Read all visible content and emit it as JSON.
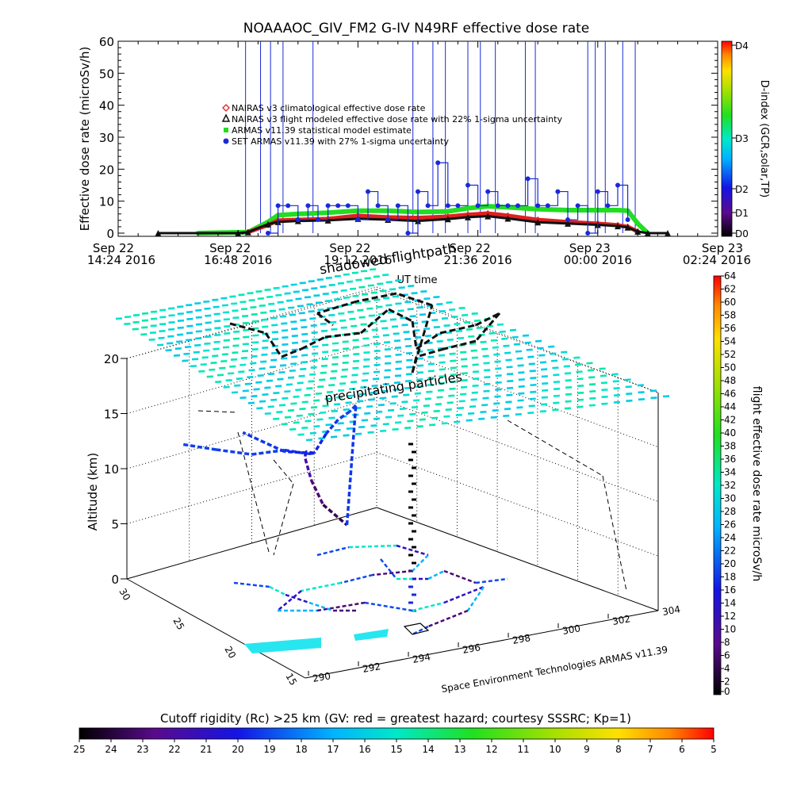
{
  "title": "NOAAAOC_GIV_FM2 G-IV    N49RF  effective dose rate",
  "colors": {
    "nairas_climatological": "#e02020",
    "nairas_flight": "#111111",
    "armas_statistical": "#22dd22",
    "set_armas": "#1a2ad8",
    "spike_lines": "#1a2ad8"
  },
  "chart_data": [
    {
      "id": "time_series",
      "type": "line",
      "ylabel": "Effective dose rate (microSv/h)",
      "xlabel": "UT time",
      "ylim": [
        0,
        60
      ],
      "yticks": [
        0,
        10,
        20,
        30,
        40,
        50,
        60
      ],
      "xticks": [
        {
          "x_hours": 0.0,
          "line1": "Sep 22",
          "line2": "14:24 2016"
        },
        {
          "x_hours": 2.4,
          "line1": "Sep 22",
          "line2": "16:48 2016"
        },
        {
          "x_hours": 4.8,
          "line1": "Sep 22",
          "line2": "19:12 2016"
        },
        {
          "x_hours": 7.2,
          "line1": "Sep 22",
          "line2": "21:36 2016"
        },
        {
          "x_hours": 9.6,
          "line1": "Sep 23",
          "line2": "00:00 2016"
        },
        {
          "x_hours": 12.0,
          "line1": "Sep 23",
          "line2": "02:24 2016"
        }
      ],
      "xlim_hours": [
        0,
        12
      ],
      "legend": [
        {
          "label": "NAIRAS v3 climatological effective dose rate",
          "marker": "diamond",
          "color_key": "nairas_climatological"
        },
        {
          "label": "NAIRAS v3 flight modeled effective dose rate with 22% 1-sigma uncertainty",
          "marker": "triangle",
          "color_key": "nairas_flight"
        },
        {
          "label": "ARMAS v11.39 statistical model estimate",
          "marker": "square",
          "color_key": "armas_statistical"
        },
        {
          "label": "SET ARMAS v11.39 with 27% 1-sigma uncertainty",
          "marker": "circle",
          "color_key": "set_armas"
        }
      ],
      "series": [
        {
          "name": "ARMAS v11.39 statistical model estimate",
          "color_key": "armas_statistical",
          "x": [
            1.6,
            2.6,
            3.0,
            3.2,
            3.6,
            4.2,
            4.8,
            5.4,
            6.0,
            6.6,
            7.0,
            7.4,
            7.8,
            8.4,
            9.0,
            9.6,
            10.0,
            10.2,
            10.4,
            10.6
          ],
          "y": [
            0,
            0.3,
            3.5,
            5.6,
            6.0,
            6.4,
            7.0,
            7.0,
            6.6,
            6.8,
            7.8,
            8.4,
            8.1,
            7.5,
            7.2,
            7.2,
            7.2,
            7.0,
            3.0,
            0
          ]
        },
        {
          "name": "NAIRAS v3 climatological effective dose rate",
          "color_key": "nairas_climatological",
          "x": [
            2.6,
            3.0,
            3.2,
            3.6,
            4.2,
            4.8,
            5.4,
            6.0,
            6.6,
            7.0,
            7.4,
            7.8,
            8.4,
            9.0,
            9.6,
            10.0,
            10.2,
            10.4
          ],
          "y": [
            0.3,
            2.5,
            4.0,
            4.2,
            4.5,
            5.5,
            5.0,
            4.8,
            5.2,
            5.8,
            6.2,
            5.5,
            4.2,
            3.5,
            3.0,
            2.5,
            2.0,
            0.5
          ]
        },
        {
          "name": "NAIRAS v3 flight modeled effective dose rate with 22% 1-sigma uncertainty",
          "color_key": "nairas_flight",
          "x": [
            0.8,
            2.4,
            2.6,
            3.0,
            3.2,
            3.6,
            4.2,
            4.8,
            5.4,
            6.0,
            6.6,
            7.0,
            7.4,
            7.8,
            8.4,
            9.0,
            9.6,
            10.0,
            10.2,
            10.4,
            10.6,
            11.0
          ],
          "y": [
            0,
            0,
            0.3,
            2.8,
            3.5,
            3.8,
            4.0,
            4.5,
            4.2,
            3.8,
            4.4,
            5.0,
            5.3,
            4.6,
            3.4,
            3.0,
            2.6,
            2.2,
            1.8,
            0.5,
            0,
            0
          ]
        },
        {
          "name": "SET ARMAS v11.39 with 27% 1-sigma uncertainty",
          "color_key": "set_armas",
          "x": [
            3.0,
            3.2,
            3.4,
            3.6,
            3.8,
            4.0,
            4.2,
            4.4,
            4.6,
            4.8,
            5.0,
            5.2,
            5.4,
            5.6,
            5.8,
            6.0,
            6.2,
            6.4,
            6.6,
            6.8,
            7.0,
            7.2,
            7.4,
            7.6,
            7.8,
            8.0,
            8.2,
            8.4,
            8.6,
            8.8,
            9.0,
            9.2,
            9.4,
            9.6,
            9.8,
            10.0,
            10.2
          ],
          "y": [
            0,
            8.6,
            8.6,
            4.2,
            8.6,
            4.2,
            8.6,
            8.6,
            8.6,
            4.2,
            13.0,
            8.6,
            4.2,
            8.6,
            0,
            13.0,
            8.6,
            22.0,
            8.6,
            8.6,
            15.0,
            8.6,
            13.0,
            8.6,
            8.6,
            8.6,
            17.0,
            8.6,
            8.6,
            13.0,
            4.2,
            8.6,
            0,
            13.0,
            8.6,
            15.0,
            4.2
          ]
        }
      ],
      "spike_times_hours": [
        2.55,
        2.85,
        3.05,
        3.3,
        3.9,
        5.9,
        6.3,
        6.55,
        7.0,
        7.25,
        7.55,
        8.15,
        8.35,
        9.4,
        9.55,
        9.75,
        10.1,
        10.35
      ]
    },
    {
      "id": "dindex_colorbar",
      "type": "heatmap",
      "ylabel": "D-index (GCR,solar,TP)",
      "tick_labels": [
        "D0",
        "D1",
        "D2",
        "D3",
        "D4"
      ]
    },
    {
      "id": "altitude_3d",
      "type": "scatter",
      "title_annotations": [
        "shadowed flightpath",
        "precipitating particles"
      ],
      "zlabel": "Altitude (km)",
      "zticks": [
        0,
        5,
        10,
        15,
        20
      ],
      "lat_ticks": [
        "30",
        "25",
        "20",
        "15"
      ],
      "lon_ticks": [
        "290",
        "292",
        "294",
        "296",
        "298",
        "300",
        "302",
        "304"
      ],
      "credit": "Space Environment Technologies ARMAS v11.39",
      "flight_path": {
        "lon": [
          291.5,
          292.0,
          293.0,
          294.5,
          295.5,
          296.5,
          297.0,
          298.0,
          299.0,
          300.0,
          301.0,
          300.5,
          299.5,
          298.5,
          297.5,
          296.5,
          295.5,
          294.5
        ],
        "lat": [
          27.5,
          25.5,
          24.0,
          23.5,
          23.0,
          24.0,
          25.5,
          27.0,
          28.0,
          28.5,
          28.0,
          26.5,
          25.5,
          25.0,
          24.5,
          24.0,
          25.0,
          27.0
        ],
        "alt_km": [
          13.0,
          13.5,
          13.5,
          13.5,
          13.0,
          12.0,
          11.0,
          9.0,
          6.0,
          3.0,
          1.0,
          13.0,
          13.5,
          13.5,
          13.0,
          12.0,
          12.0,
          13.0
        ]
      }
    },
    {
      "id": "flight_dose_colorbar",
      "type": "heatmap",
      "ylabel": "flight effective dose rate microSv/h",
      "tick_labels": [
        "0",
        "2",
        "4",
        "6",
        "8",
        "10",
        "12",
        "14",
        "16",
        "18",
        "20",
        "22",
        "24",
        "26",
        "28",
        "30",
        "32",
        "34",
        "36",
        "38",
        "40",
        "42",
        "44",
        "46",
        "48",
        "50",
        "52",
        "54",
        "56",
        "58",
        "60",
        "62",
        "64"
      ]
    },
    {
      "id": "rigidity_colorbar",
      "type": "heatmap",
      "title": "Cutoff rigidity (Rc) >25 km (GV: red = greatest hazard; courtesy SSSRC; Kp=1)",
      "tick_labels": [
        "25",
        "24",
        "23",
        "22",
        "21",
        "20",
        "19",
        "18",
        "17",
        "16",
        "15",
        "14",
        "13",
        "12",
        "11",
        "10",
        "9",
        "8",
        "7",
        "6",
        "5"
      ]
    }
  ]
}
